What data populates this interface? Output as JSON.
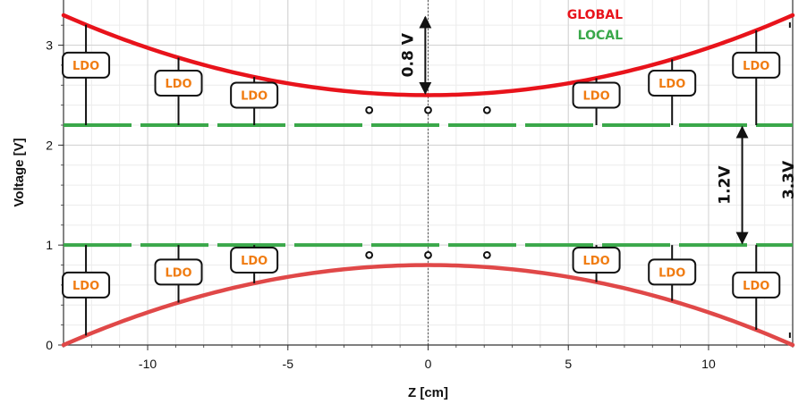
{
  "chart_data": {
    "type": "line",
    "xlabel": "Z [cm]",
    "ylabel": "Voltage [V]",
    "xlim": [
      -13,
      13
    ],
    "ylim": [
      0,
      3.3
    ],
    "x_ticks": [
      -10,
      -5,
      0,
      5,
      10
    ],
    "x_tick_labels": [
      "-10",
      "-5",
      "0",
      "5",
      "10"
    ],
    "y_ticks": [
      0,
      1,
      2,
      3
    ],
    "y_tick_labels": [
      "0",
      "1",
      "2",
      "3"
    ],
    "grid": true,
    "legend": {
      "placement": "top-right",
      "entries": [
        {
          "label": "GLOBAL",
          "color": "#e8131b"
        },
        {
          "label": "LOCAL",
          "color": "#3aa84a"
        }
      ]
    },
    "series": [
      {
        "name": "GLOBAL",
        "kind": "parabola",
        "color": "#e8131b",
        "x": [
          -13,
          0,
          13
        ],
        "y": [
          3.3,
          2.5,
          3.3
        ]
      },
      {
        "name": "GLOBAL",
        "kind": "parabola",
        "color": "#e04848",
        "x": [
          -13,
          0,
          13
        ],
        "y": [
          0.0,
          0.8,
          0.0
        ]
      },
      {
        "name": "LOCAL",
        "kind": "dashed",
        "color": "#3aa84a",
        "y": 2.2
      },
      {
        "name": "LOCAL",
        "kind": "dashed",
        "color": "#3aa84a",
        "y": 1.0
      }
    ],
    "ldo_label": "LDO",
    "ldos_top": [
      {
        "x": -12.2,
        "y": 2.8
      },
      {
        "x": -8.9,
        "y": 2.62
      },
      {
        "x": -6.2,
        "y": 2.5
      },
      {
        "x": 6.0,
        "y": 2.5
      },
      {
        "x": 8.7,
        "y": 2.62
      },
      {
        "x": 11.7,
        "y": 2.8
      }
    ],
    "ldos_bottom": [
      {
        "x": -12.2,
        "y": 0.6
      },
      {
        "x": -8.9,
        "y": 0.73
      },
      {
        "x": -6.2,
        "y": 0.85
      },
      {
        "x": 6.0,
        "y": 0.85
      },
      {
        "x": 8.7,
        "y": 0.73
      },
      {
        "x": 11.7,
        "y": 0.6
      }
    ],
    "dots_top": [
      {
        "x": -2.1,
        "y": 2.35
      },
      {
        "x": 0,
        "y": 2.35
      },
      {
        "x": 2.1,
        "y": 2.35
      }
    ],
    "dots_bottom": [
      {
        "x": -2.1,
        "y": 0.9
      },
      {
        "x": 0,
        "y": 0.9
      },
      {
        "x": 2.1,
        "y": 0.9
      }
    ],
    "annotations": [
      {
        "label": "0.8 V",
        "x": -0.1,
        "y_from": 3.3,
        "y_to": 2.5
      },
      {
        "label": "1.2V",
        "x": 11.2,
        "y_from": 2.2,
        "y_to": 1.0
      },
      {
        "label": "3.3V",
        "x": 12.9,
        "y_from": 3.3,
        "y_to": 0.0
      }
    ]
  }
}
